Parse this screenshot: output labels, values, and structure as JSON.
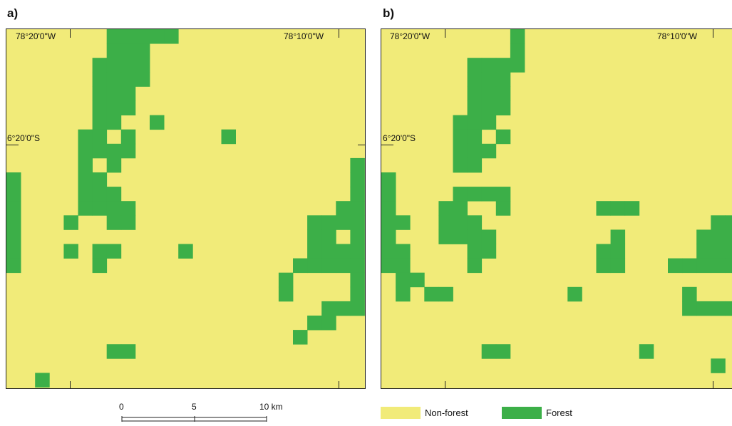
{
  "colors": {
    "nonforest": "#F1EB79",
    "forest": "#3CAF48",
    "frame": "#222222"
  },
  "panels": [
    {
      "id": "a",
      "label": "a)",
      "lon_left": "78°20'0\"W",
      "lon_right": "78°10'0\"W",
      "lat": "6°20'0\"S",
      "forest_cells": [
        [
          7,
          0
        ],
        [
          8,
          0
        ],
        [
          9,
          0
        ],
        [
          10,
          0
        ],
        [
          11,
          0
        ],
        [
          7,
          1
        ],
        [
          8,
          1
        ],
        [
          9,
          1
        ],
        [
          6,
          2
        ],
        [
          7,
          2
        ],
        [
          8,
          2
        ],
        [
          9,
          2
        ],
        [
          6,
          3
        ],
        [
          7,
          3
        ],
        [
          8,
          3
        ],
        [
          9,
          3
        ],
        [
          6,
          4
        ],
        [
          7,
          4
        ],
        [
          8,
          4
        ],
        [
          6,
          5
        ],
        [
          7,
          5
        ],
        [
          8,
          5
        ],
        [
          6,
          6
        ],
        [
          7,
          6
        ],
        [
          10,
          6
        ],
        [
          5,
          7
        ],
        [
          6,
          7
        ],
        [
          8,
          7
        ],
        [
          15,
          7
        ],
        [
          5,
          8
        ],
        [
          6,
          8
        ],
        [
          7,
          8
        ],
        [
          8,
          8
        ],
        [
          5,
          9
        ],
        [
          7,
          9
        ],
        [
          24,
          9
        ],
        [
          0,
          10
        ],
        [
          5,
          10
        ],
        [
          6,
          10
        ],
        [
          24,
          10
        ],
        [
          0,
          11
        ],
        [
          5,
          11
        ],
        [
          6,
          11
        ],
        [
          7,
          11
        ],
        [
          24,
          11
        ],
        [
          0,
          12
        ],
        [
          5,
          12
        ],
        [
          6,
          12
        ],
        [
          7,
          12
        ],
        [
          8,
          12
        ],
        [
          23,
          12
        ],
        [
          24,
          12
        ],
        [
          0,
          13
        ],
        [
          4,
          13
        ],
        [
          7,
          13
        ],
        [
          8,
          13
        ],
        [
          21,
          13
        ],
        [
          22,
          13
        ],
        [
          23,
          13
        ],
        [
          24,
          13
        ],
        [
          0,
          14
        ],
        [
          21,
          14
        ],
        [
          22,
          14
        ],
        [
          24,
          14
        ],
        [
          0,
          15
        ],
        [
          4,
          15
        ],
        [
          6,
          15
        ],
        [
          7,
          15
        ],
        [
          12,
          15
        ],
        [
          21,
          15
        ],
        [
          22,
          15
        ],
        [
          23,
          15
        ],
        [
          24,
          15
        ],
        [
          0,
          16
        ],
        [
          6,
          16
        ],
        [
          20,
          16
        ],
        [
          21,
          16
        ],
        [
          22,
          16
        ],
        [
          23,
          16
        ],
        [
          24,
          16
        ],
        [
          19,
          17
        ],
        [
          24,
          17
        ],
        [
          19,
          18
        ],
        [
          24,
          18
        ],
        [
          22,
          19
        ],
        [
          23,
          19
        ],
        [
          24,
          19
        ],
        [
          21,
          20
        ],
        [
          22,
          20
        ],
        [
          20,
          21
        ],
        [
          7,
          22
        ],
        [
          8,
          22
        ],
        [
          2,
          24
        ]
      ]
    },
    {
      "id": "b",
      "label": "b)",
      "lon_left": "78°20'0\"W",
      "lon_right": "78°10'0\"W",
      "lat": "6°20'0\"S",
      "forest_cells": [
        [
          9,
          0
        ],
        [
          9,
          1
        ],
        [
          6,
          2
        ],
        [
          7,
          2
        ],
        [
          8,
          2
        ],
        [
          9,
          2
        ],
        [
          6,
          3
        ],
        [
          7,
          3
        ],
        [
          8,
          3
        ],
        [
          6,
          4
        ],
        [
          7,
          4
        ],
        [
          8,
          4
        ],
        [
          6,
          5
        ],
        [
          7,
          5
        ],
        [
          8,
          5
        ],
        [
          5,
          6
        ],
        [
          6,
          6
        ],
        [
          7,
          6
        ],
        [
          5,
          7
        ],
        [
          6,
          7
        ],
        [
          8,
          7
        ],
        [
          5,
          8
        ],
        [
          6,
          8
        ],
        [
          7,
          8
        ],
        [
          5,
          9
        ],
        [
          6,
          9
        ],
        [
          0,
          10
        ],
        [
          0,
          11
        ],
        [
          5,
          11
        ],
        [
          6,
          11
        ],
        [
          7,
          11
        ],
        [
          8,
          11
        ],
        [
          0,
          12
        ],
        [
          4,
          12
        ],
        [
          5,
          12
        ],
        [
          8,
          12
        ],
        [
          15,
          12
        ],
        [
          16,
          12
        ],
        [
          17,
          12
        ],
        [
          0,
          13
        ],
        [
          1,
          13
        ],
        [
          4,
          13
        ],
        [
          5,
          13
        ],
        [
          6,
          13
        ],
        [
          23,
          13
        ],
        [
          24,
          13
        ],
        [
          0,
          14
        ],
        [
          4,
          14
        ],
        [
          5,
          14
        ],
        [
          6,
          14
        ],
        [
          7,
          14
        ],
        [
          16,
          14
        ],
        [
          22,
          14
        ],
        [
          23,
          14
        ],
        [
          24,
          14
        ],
        [
          0,
          15
        ],
        [
          1,
          15
        ],
        [
          6,
          15
        ],
        [
          7,
          15
        ],
        [
          15,
          15
        ],
        [
          16,
          15
        ],
        [
          22,
          15
        ],
        [
          23,
          15
        ],
        [
          24,
          15
        ],
        [
          0,
          16
        ],
        [
          1,
          16
        ],
        [
          6,
          16
        ],
        [
          15,
          16
        ],
        [
          16,
          16
        ],
        [
          20,
          16
        ],
        [
          21,
          16
        ],
        [
          22,
          16
        ],
        [
          23,
          16
        ],
        [
          24,
          16
        ],
        [
          1,
          17
        ],
        [
          2,
          17
        ],
        [
          1,
          18
        ],
        [
          3,
          18
        ],
        [
          4,
          18
        ],
        [
          13,
          18
        ],
        [
          21,
          18
        ],
        [
          21,
          19
        ],
        [
          22,
          19
        ],
        [
          23,
          19
        ],
        [
          24,
          19
        ],
        [
          7,
          22
        ],
        [
          8,
          22
        ],
        [
          18,
          22
        ],
        [
          23,
          23
        ],
        [
          0,
          27
        ]
      ]
    }
  ],
  "scale": {
    "labels": [
      "0",
      "5",
      "10 km"
    ]
  },
  "legend": {
    "items": [
      {
        "name": "Non-forest",
        "key": "nonforest"
      },
      {
        "name": "Forest",
        "key": "forest"
      }
    ]
  }
}
